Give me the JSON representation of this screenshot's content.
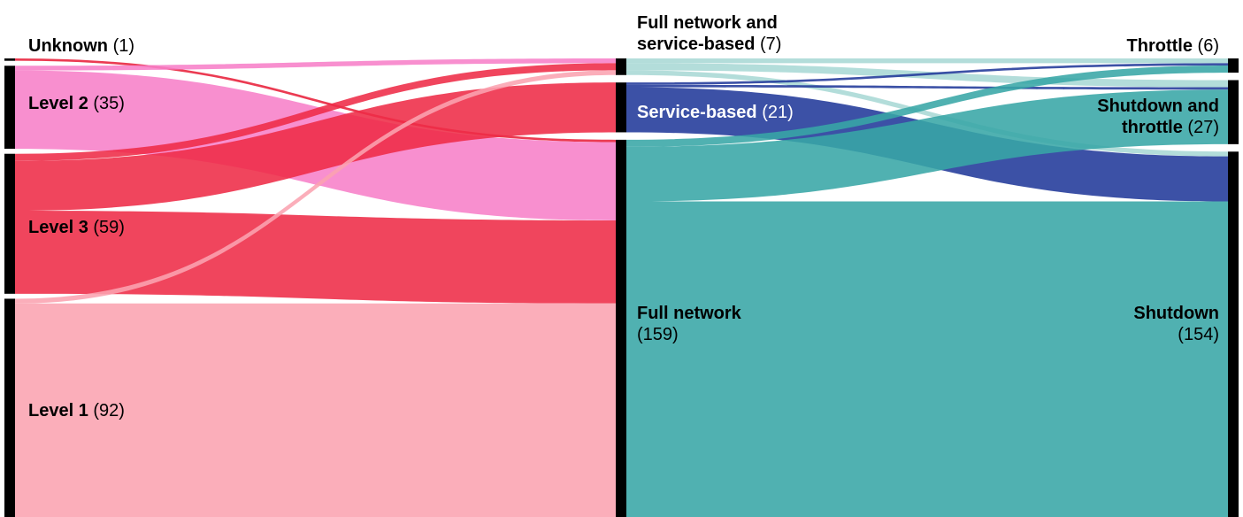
{
  "chart_data": {
    "type": "sankey",
    "node_color": "#000000",
    "nodes": [
      {
        "name": "Unknown",
        "value": 1,
        "value_label": "(1)",
        "color": "#e8203a"
      },
      {
        "name": "Level 2",
        "value": 35,
        "value_label": "(35)",
        "color": "#f77fc8"
      },
      {
        "name": "Level 3",
        "value": 59,
        "value_label": "(59)",
        "color": "#ee2b47"
      },
      {
        "name": "Level 1",
        "value": 92,
        "value_label": "(92)",
        "color": "#fba3b0"
      },
      {
        "name": "Full network and service-based",
        "value": 7,
        "value_label": "(7)",
        "color": "#a8d8d5"
      },
      {
        "name": "Service-based",
        "value": 21,
        "value_label": "(21)",
        "color": "#21399a"
      },
      {
        "name": "Full network",
        "value": 159,
        "value_label": "(159)",
        "color": "#38a6a6"
      },
      {
        "name": "Throttle",
        "value": 6,
        "value_label": "(6)",
        "color": "#38a6a6"
      },
      {
        "name": "Shutdown and throttle",
        "value": 27,
        "value_label": "(27)",
        "color": "#38a6a6"
      },
      {
        "name": "Shutdown",
        "value": 154,
        "value_label": "(154)",
        "color": "#38a6a6"
      }
    ],
    "links": [
      {
        "source": 0,
        "target": 6,
        "value": 1
      },
      {
        "source": 1,
        "target": 4,
        "value": 2
      },
      {
        "source": 1,
        "target": 6,
        "value": 33
      },
      {
        "source": 2,
        "target": 4,
        "value": 3
      },
      {
        "source": 2,
        "target": 5,
        "value": 21
      },
      {
        "source": 2,
        "target": 6,
        "value": 35
      },
      {
        "source": 3,
        "target": 4,
        "value": 2
      },
      {
        "source": 3,
        "target": 6,
        "value": 90
      },
      {
        "source": 4,
        "target": 7,
        "value": 2
      },
      {
        "source": 4,
        "target": 8,
        "value": 3
      },
      {
        "source": 4,
        "target": 9,
        "value": 2
      },
      {
        "source": 5,
        "target": 7,
        "value": 1
      },
      {
        "source": 5,
        "target": 8,
        "value": 1
      },
      {
        "source": 5,
        "target": 9,
        "value": 19
      },
      {
        "source": 6,
        "target": 7,
        "value": 3
      },
      {
        "source": 6,
        "target": 8,
        "value": 23
      },
      {
        "source": 6,
        "target": 9,
        "value": 133
      }
    ]
  }
}
